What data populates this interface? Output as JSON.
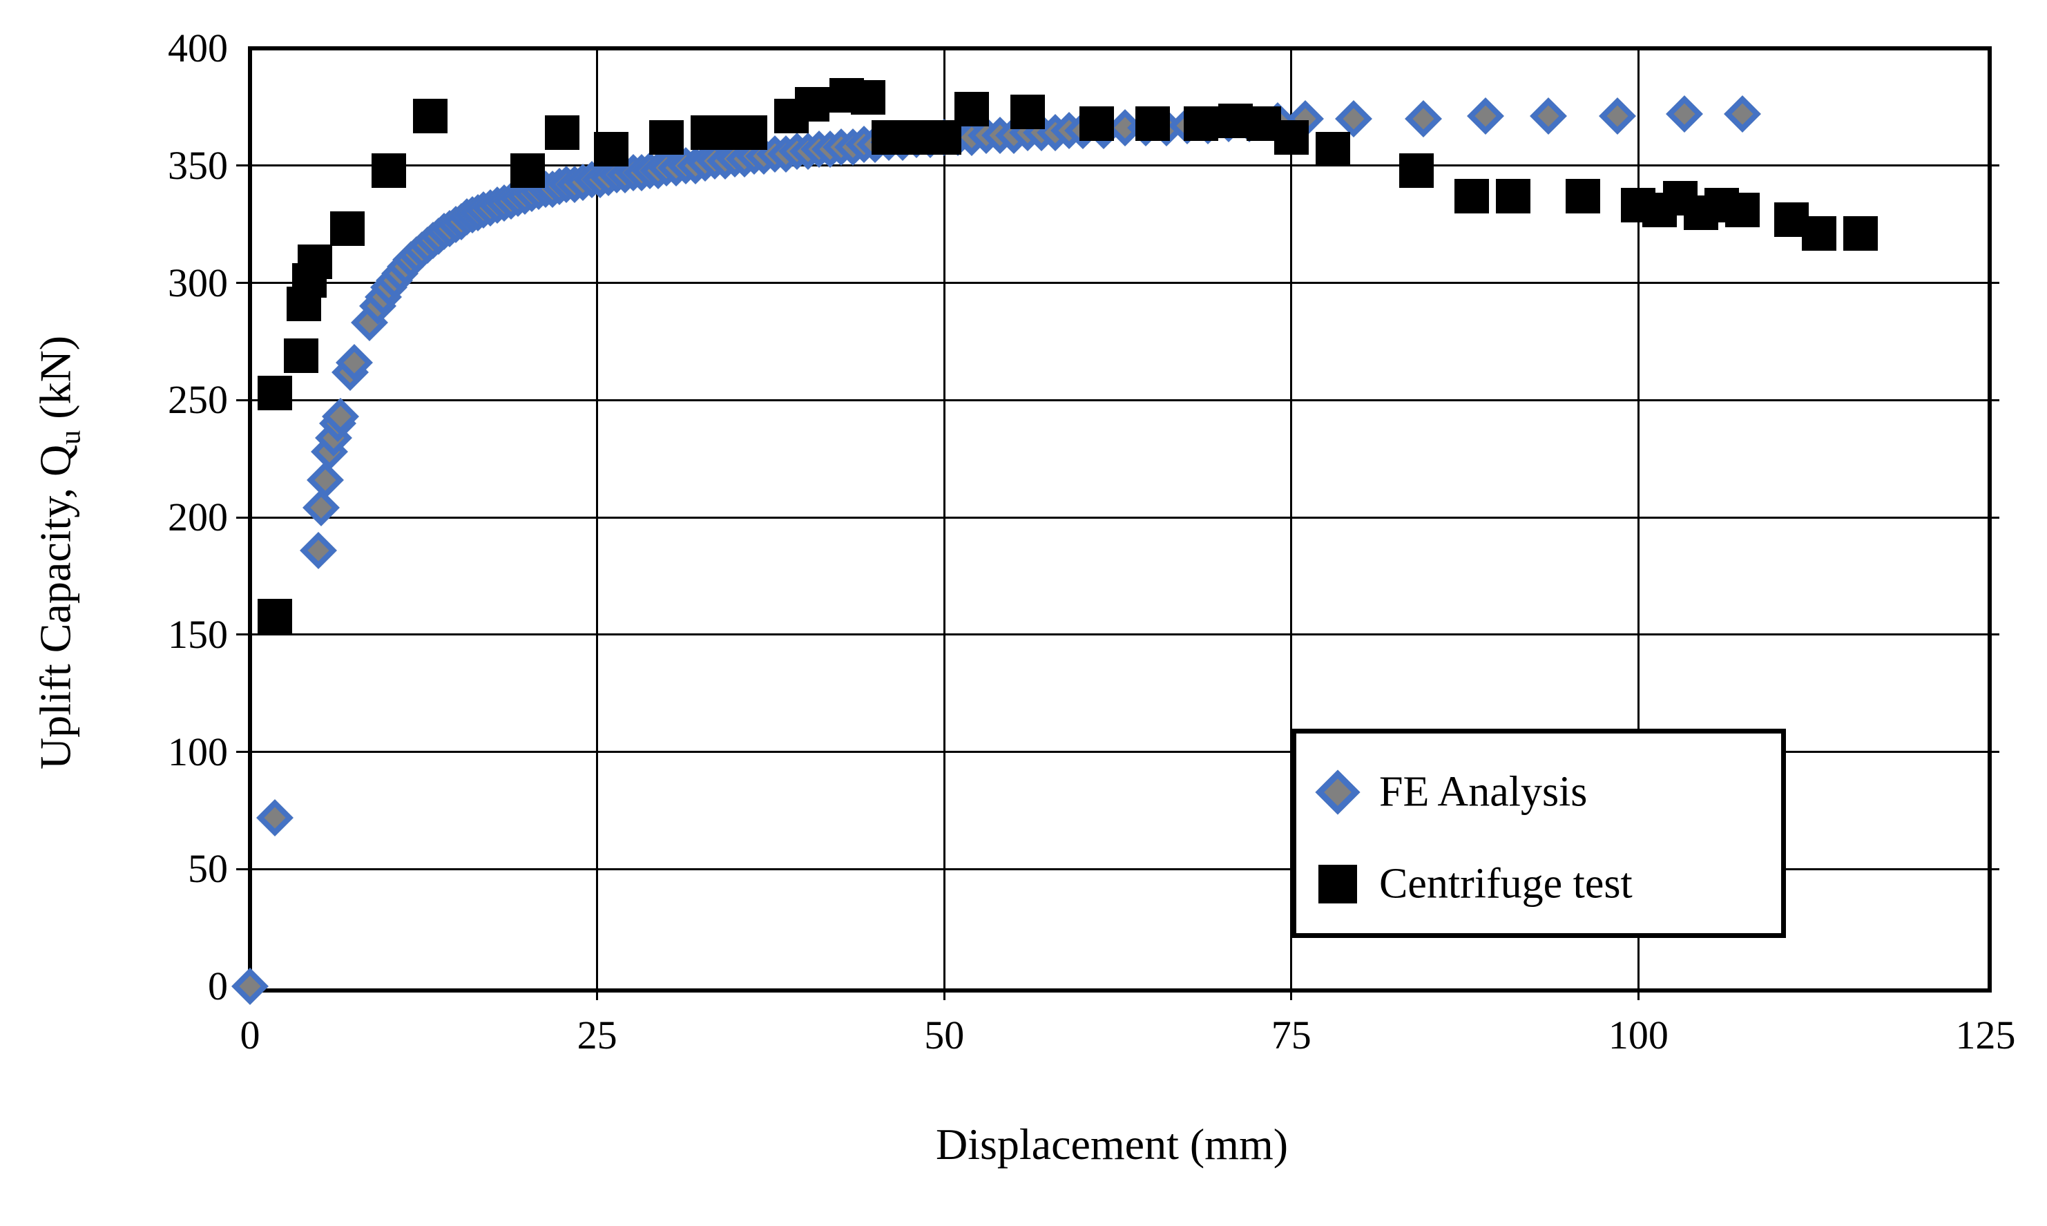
{
  "page": {
    "background": "#ffffff"
  },
  "colors": {
    "axis": "#000000",
    "grid": "#000000",
    "background": "#ffffff",
    "fe_diamond_fill": "#808080",
    "fe_diamond_stroke": "#4472C4",
    "centrifuge_square_fill": "#000000"
  },
  "chart_data": {
    "type": "scatter",
    "title": "",
    "xlabel": "Displacement (mm)",
    "ylabel": "Uplift Capacity, Qu (kN)",
    "ylabel_parts": {
      "main": "Uplift Capacity, Q",
      "sub": "u",
      "tail": " (kN)"
    },
    "xlim": [
      0,
      125
    ],
    "ylim": [
      0,
      400
    ],
    "x_ticks": [
      0,
      25,
      50,
      75,
      100,
      125
    ],
    "y_ticks": [
      0,
      50,
      100,
      150,
      200,
      250,
      300,
      350,
      400
    ],
    "grid": true,
    "legend_position": "inside right",
    "series": [
      {
        "name": "FE Analysis",
        "marker": "diamond",
        "fill": "#808080",
        "stroke": "#4472C4",
        "points": [
          [
            0,
            0
          ],
          [
            1.8,
            72
          ],
          [
            4.9,
            186
          ],
          [
            5.1,
            204
          ],
          [
            5.4,
            216
          ],
          [
            5.7,
            228
          ],
          [
            6.0,
            234
          ],
          [
            6.3,
            240
          ],
          [
            6.5,
            243
          ],
          [
            7.2,
            262
          ],
          [
            7.5,
            266
          ],
          [
            8.6,
            283
          ],
          [
            9.2,
            290
          ],
          [
            9.6,
            294
          ],
          [
            10.0,
            298
          ],
          [
            10.4,
            301
          ],
          [
            10.8,
            304
          ],
          [
            11.2,
            307
          ],
          [
            11.6,
            310
          ],
          [
            12.0,
            312
          ],
          [
            12.4,
            314
          ],
          [
            12.8,
            316
          ],
          [
            13.2,
            318
          ],
          [
            13.6,
            320
          ],
          [
            14.0,
            322
          ],
          [
            14.4,
            323
          ],
          [
            14.8,
            325
          ],
          [
            15.2,
            326
          ],
          [
            15.6,
            328
          ],
          [
            16.0,
            329
          ],
          [
            16.4,
            330
          ],
          [
            16.8,
            331
          ],
          [
            17.3,
            332
          ],
          [
            17.8,
            333
          ],
          [
            18.3,
            334
          ],
          [
            18.8,
            335
          ],
          [
            19.3,
            336
          ],
          [
            19.8,
            337
          ],
          [
            20.3,
            338
          ],
          [
            20.8,
            339
          ],
          [
            21.3,
            340
          ],
          [
            21.8,
            340
          ],
          [
            22.3,
            341
          ],
          [
            22.8,
            342
          ],
          [
            23.4,
            342
          ],
          [
            24.0,
            343
          ],
          [
            24.6,
            344
          ],
          [
            25.2,
            344
          ],
          [
            25.8,
            345
          ],
          [
            26.4,
            346
          ],
          [
            27.0,
            346
          ],
          [
            27.6,
            347
          ],
          [
            28.2,
            347
          ],
          [
            28.8,
            348
          ],
          [
            29.4,
            348
          ],
          [
            30.0,
            349
          ],
          [
            30.7,
            349
          ],
          [
            31.4,
            350
          ],
          [
            32.1,
            350
          ],
          [
            32.8,
            351
          ],
          [
            33.5,
            352
          ],
          [
            34.2,
            352
          ],
          [
            34.9,
            353
          ],
          [
            35.6,
            353
          ],
          [
            36.3,
            354
          ],
          [
            37.0,
            354
          ],
          [
            37.8,
            355
          ],
          [
            38.6,
            355
          ],
          [
            39.4,
            356
          ],
          [
            40.2,
            356
          ],
          [
            41.0,
            357
          ],
          [
            41.8,
            357
          ],
          [
            42.6,
            358
          ],
          [
            43.4,
            358
          ],
          [
            44.2,
            359
          ],
          [
            45.0,
            359
          ],
          [
            46.0,
            360
          ],
          [
            47.0,
            360
          ],
          [
            48.0,
            361
          ],
          [
            49.0,
            361
          ],
          [
            50.0,
            362
          ],
          [
            51.0,
            362
          ],
          [
            52.0,
            362
          ],
          [
            53.0,
            363
          ],
          [
            54.0,
            363
          ],
          [
            55.0,
            363
          ],
          [
            56.0,
            364
          ],
          [
            57.0,
            364
          ],
          [
            58.0,
            364
          ],
          [
            59.0,
            365
          ],
          [
            60.0,
            365
          ],
          [
            61.5,
            365
          ],
          [
            63.0,
            366
          ],
          [
            64.5,
            366
          ],
          [
            66.0,
            366
          ],
          [
            67.5,
            367
          ],
          [
            69.0,
            367
          ],
          [
            70.5,
            368
          ],
          [
            72.0,
            368
          ],
          [
            74.0,
            369
          ],
          [
            76.0,
            370
          ],
          [
            79.5,
            370
          ],
          [
            84.5,
            370
          ],
          [
            89.0,
            371
          ],
          [
            93.5,
            371
          ],
          [
            98.5,
            371
          ],
          [
            103.3,
            372
          ],
          [
            107.5,
            372
          ]
        ]
      },
      {
        "name": "Centrifuge test",
        "marker": "square",
        "fill": "#000000",
        "points": [
          [
            1.8,
            253
          ],
          [
            1.8,
            158
          ],
          [
            3.7,
            269
          ],
          [
            3.9,
            291
          ],
          [
            4.3,
            301
          ],
          [
            4.7,
            309
          ],
          [
            7.0,
            323
          ],
          [
            10.0,
            348
          ],
          [
            13.0,
            371
          ],
          [
            20.0,
            348
          ],
          [
            22.5,
            364
          ],
          [
            26.0,
            357
          ],
          [
            30.0,
            362
          ],
          [
            33.0,
            364
          ],
          [
            34.5,
            364
          ],
          [
            36.0,
            364
          ],
          [
            39.0,
            371
          ],
          [
            40.5,
            376
          ],
          [
            43.0,
            380
          ],
          [
            44.5,
            379
          ],
          [
            46.0,
            362
          ],
          [
            48.0,
            362
          ],
          [
            50.0,
            362
          ],
          [
            52.0,
            374
          ],
          [
            56.0,
            373
          ],
          [
            61.0,
            368
          ],
          [
            65.0,
            368
          ],
          [
            68.5,
            368
          ],
          [
            71.0,
            369
          ],
          [
            73.0,
            368
          ],
          [
            75.0,
            362
          ],
          [
            78.0,
            357
          ],
          [
            84.0,
            348
          ],
          [
            88.0,
            337
          ],
          [
            91.0,
            337
          ],
          [
            96.0,
            337
          ],
          [
            100.0,
            333
          ],
          [
            101.5,
            331
          ],
          [
            103.0,
            336
          ],
          [
            104.5,
            330
          ],
          [
            106.0,
            333
          ],
          [
            107.5,
            331
          ],
          [
            111.0,
            327
          ],
          [
            113.0,
            321
          ],
          [
            116.0,
            321
          ]
        ]
      }
    ]
  },
  "legend": {
    "items": [
      {
        "label": "FE Analysis",
        "marker": "diamond"
      },
      {
        "label": "Centrifuge test",
        "marker": "square"
      }
    ]
  }
}
